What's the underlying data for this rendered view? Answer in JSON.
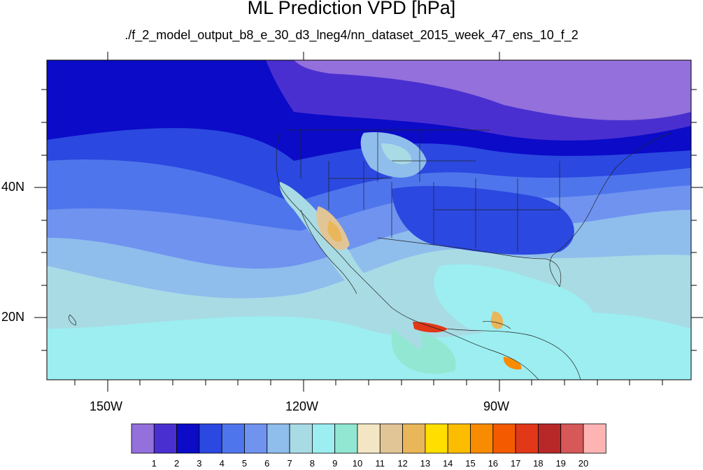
{
  "title": "ML Prediction VPD [hPa]",
  "subtitle": "./f_2_model_output_b8_e_30_d3_lneg4/nn_dataset_2015_week_47_ens_10_f_2",
  "axes": {
    "lat_labels": [
      "40N",
      "20N"
    ],
    "lon_labels": [
      "150W",
      "120W",
      "90W"
    ]
  },
  "colorbar": {
    "labels": [
      "1",
      "2",
      "3",
      "4",
      "5",
      "6",
      "7",
      "8",
      "9",
      "10",
      "11",
      "12",
      "13",
      "14",
      "15",
      "16",
      "17",
      "18",
      "19",
      "20"
    ],
    "colors": [
      "#9370db",
      "#4a2fd0",
      "#0b0bc8",
      "#2b48e0",
      "#4f75ec",
      "#6f93ef",
      "#8fbdec",
      "#a8dbe4",
      "#9ceef0",
      "#92e7d2",
      "#f2e6c4",
      "#e2c596",
      "#e9b659",
      "#ffde00",
      "#fcbd00",
      "#f98b00",
      "#f45a00",
      "#e03818",
      "#b82828",
      "#d65858",
      "#ffb4b4"
    ]
  }
}
